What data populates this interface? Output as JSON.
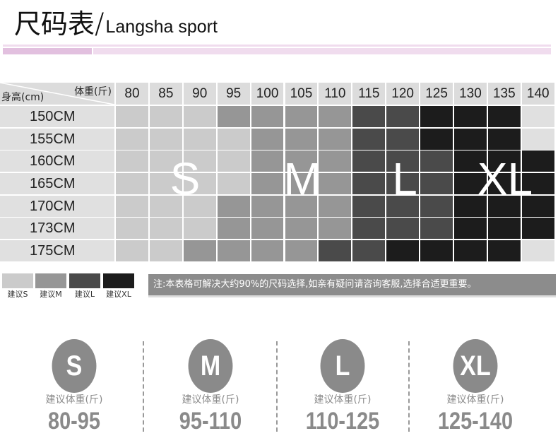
{
  "header": {
    "title_zh": "尺码表",
    "slash": "/",
    "title_en": "Langsha sport"
  },
  "table": {
    "weight_label": "体重(斤)",
    "height_label": "身高(cm)",
    "weights": [
      "80",
      "85",
      "90",
      "95",
      "100",
      "105",
      "110",
      "115",
      "120",
      "125",
      "130",
      "135",
      "140"
    ],
    "heights": [
      "150CM",
      "155CM",
      "160CM",
      "165CM",
      "170CM",
      "173CM",
      "175CM"
    ],
    "sizes_matrix": [
      [
        "S",
        "S",
        "S",
        "M",
        "M",
        "M",
        "M",
        "L",
        "L",
        "XL",
        "XL",
        "XL",
        ""
      ],
      [
        "S",
        "S",
        "S",
        "S",
        "M",
        "M",
        "M",
        "L",
        "L",
        "XL",
        "XL",
        "XL",
        ""
      ],
      [
        "S",
        "S",
        "S",
        "S",
        "M",
        "M",
        "M",
        "L",
        "L",
        "L",
        "XL",
        "XL",
        "XL"
      ],
      [
        "S",
        "S",
        "S",
        "S",
        "M",
        "M",
        "M",
        "L",
        "L",
        "L",
        "XL",
        "XL",
        "XL"
      ],
      [
        "S",
        "S",
        "S",
        "M",
        "M",
        "M",
        "M",
        "L",
        "L",
        "L",
        "XL",
        "XL",
        "XL"
      ],
      [
        "S",
        "S",
        "S",
        "M",
        "M",
        "M",
        "M",
        "L",
        "L",
        "L",
        "XL",
        "XL",
        "XL"
      ],
      [
        "S",
        "S",
        "M",
        "M",
        "M",
        "M",
        "L",
        "L",
        "XL",
        "XL",
        "XL",
        "XL",
        ""
      ]
    ],
    "overlay_labels": [
      "S",
      "M",
      "L",
      "XL"
    ]
  },
  "colors": {
    "S": "#cbcbcb",
    "M": "#969696",
    "L": "#4a4a4a",
    "XL": "#1c1c1c",
    "empty": "#e0e0e0",
    "accent": "#e2c0df"
  },
  "legend": [
    {
      "size": "S",
      "label": "建议S"
    },
    {
      "size": "M",
      "label": "建议M"
    },
    {
      "size": "L",
      "label": "建议L"
    },
    {
      "size": "XL",
      "label": "建议XL"
    }
  ],
  "note": "注:本表格可解决大约90%的尺码选择,如亲有疑问请咨询客服,选择合适更重要。",
  "recommendations": [
    {
      "size": "S",
      "label": "建议体重(斤)",
      "range": "80-95"
    },
    {
      "size": "M",
      "label": "建议体重(斤)",
      "range": "95-110"
    },
    {
      "size": "L",
      "label": "建议体重(斤)",
      "range": "110-125"
    },
    {
      "size": "XL",
      "label": "建议体重(斤)",
      "range": "125-140"
    }
  ]
}
